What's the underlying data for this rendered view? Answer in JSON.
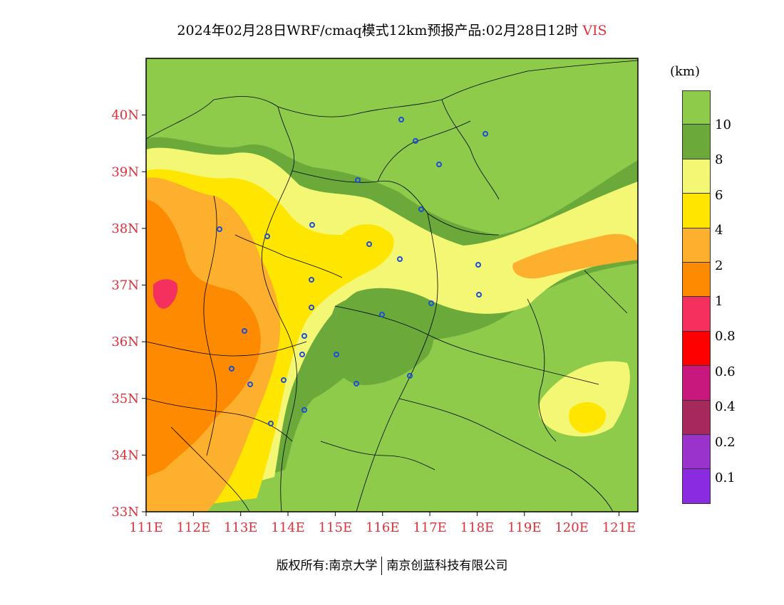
{
  "title": {
    "main": "2024年02月28日WRF/cmaq模式12km预报产品:02月28日12时",
    "variable": "VIS"
  },
  "map": {
    "lat_labels": [
      "40N",
      "39N",
      "38N",
      "37N",
      "36N",
      "35N",
      "34N",
      "33N"
    ],
    "lon_labels": [
      "111E",
      "112E",
      "113E",
      "114E",
      "115E",
      "116E",
      "117E",
      "118E",
      "119E",
      "120E",
      "121E"
    ],
    "lat_range": [
      33,
      41
    ],
    "lon_range": [
      111,
      121.4
    ]
  },
  "legend": {
    "unit": "(km)",
    "labels": [
      "10",
      "8",
      "6",
      "4",
      "2",
      "1",
      "0.8",
      "0.6",
      "0.4",
      "0.2",
      "0.1"
    ],
    "colors": [
      "#8ecb4b",
      "#6aa93a",
      "#f3f773",
      "#ffe600",
      "#fdb02e",
      "#fd8a00",
      "#f4305f",
      "#ff0000",
      "#c8187d",
      "#a52a5b",
      "#9933cc",
      "#8a2be2"
    ]
  },
  "footer": {
    "left": "版权所有:南京大学",
    "right": "南京创蓝科技有限公司"
  }
}
